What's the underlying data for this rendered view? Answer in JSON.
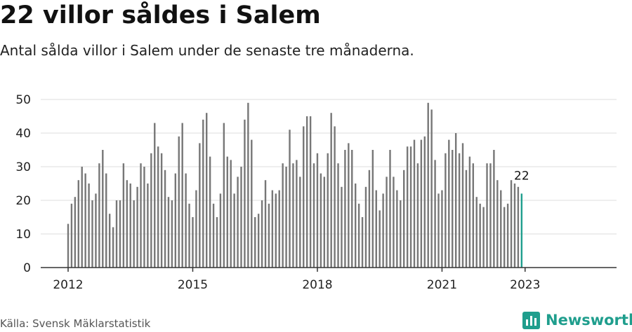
{
  "header": {
    "title": "22 villor såldes i Salem",
    "subtitle": "Antal sålda villor i Salem under de senaste tre månaderna."
  },
  "footer": {
    "source": "Källa: Svensk Mäklarstatistik",
    "brand": "Newsworthy"
  },
  "colors": {
    "bar": "#777777",
    "highlight": "#1f9e8d",
    "grid": "#dddddd",
    "axis": "#333333"
  },
  "chart_data": {
    "type": "bar",
    "start_label": "2012",
    "x_tick_labels": [
      "2012",
      "2015",
      "2018",
      "2021",
      "2023"
    ],
    "values": [
      13,
      19,
      21,
      26,
      30,
      28,
      25,
      20,
      22,
      31,
      35,
      28,
      16,
      12,
      20,
      20,
      31,
      26,
      25,
      20,
      24,
      31,
      30,
      25,
      34,
      43,
      36,
      34,
      29,
      21,
      20,
      28,
      39,
      43,
      28,
      19,
      15,
      23,
      37,
      44,
      46,
      33,
      19,
      15,
      22,
      43,
      33,
      32,
      22,
      27,
      30,
      44,
      49,
      38,
      15,
      16,
      20,
      26,
      19,
      23,
      22,
      23,
      31,
      30,
      41,
      31,
      32,
      27,
      42,
      45,
      45,
      31,
      34,
      28,
      27,
      34,
      46,
      42,
      31,
      24,
      35,
      37,
      35,
      25,
      19,
      15,
      24,
      29,
      35,
      23,
      17,
      22,
      27,
      35,
      27,
      23,
      20,
      29,
      36,
      36,
      38,
      31,
      38,
      39,
      49,
      47,
      32,
      22,
      23,
      34,
      38,
      35,
      40,
      34,
      37,
      29,
      33,
      31,
      21,
      19,
      18,
      31,
      31,
      35,
      26,
      23,
      18,
      19,
      26,
      25,
      24,
      22
    ],
    "highlight_label": "22",
    "y_ticks": [
      0,
      10,
      20,
      30,
      40,
      50
    ],
    "ylim": [
      0,
      50
    ],
    "grid": true,
    "legend": "none"
  }
}
